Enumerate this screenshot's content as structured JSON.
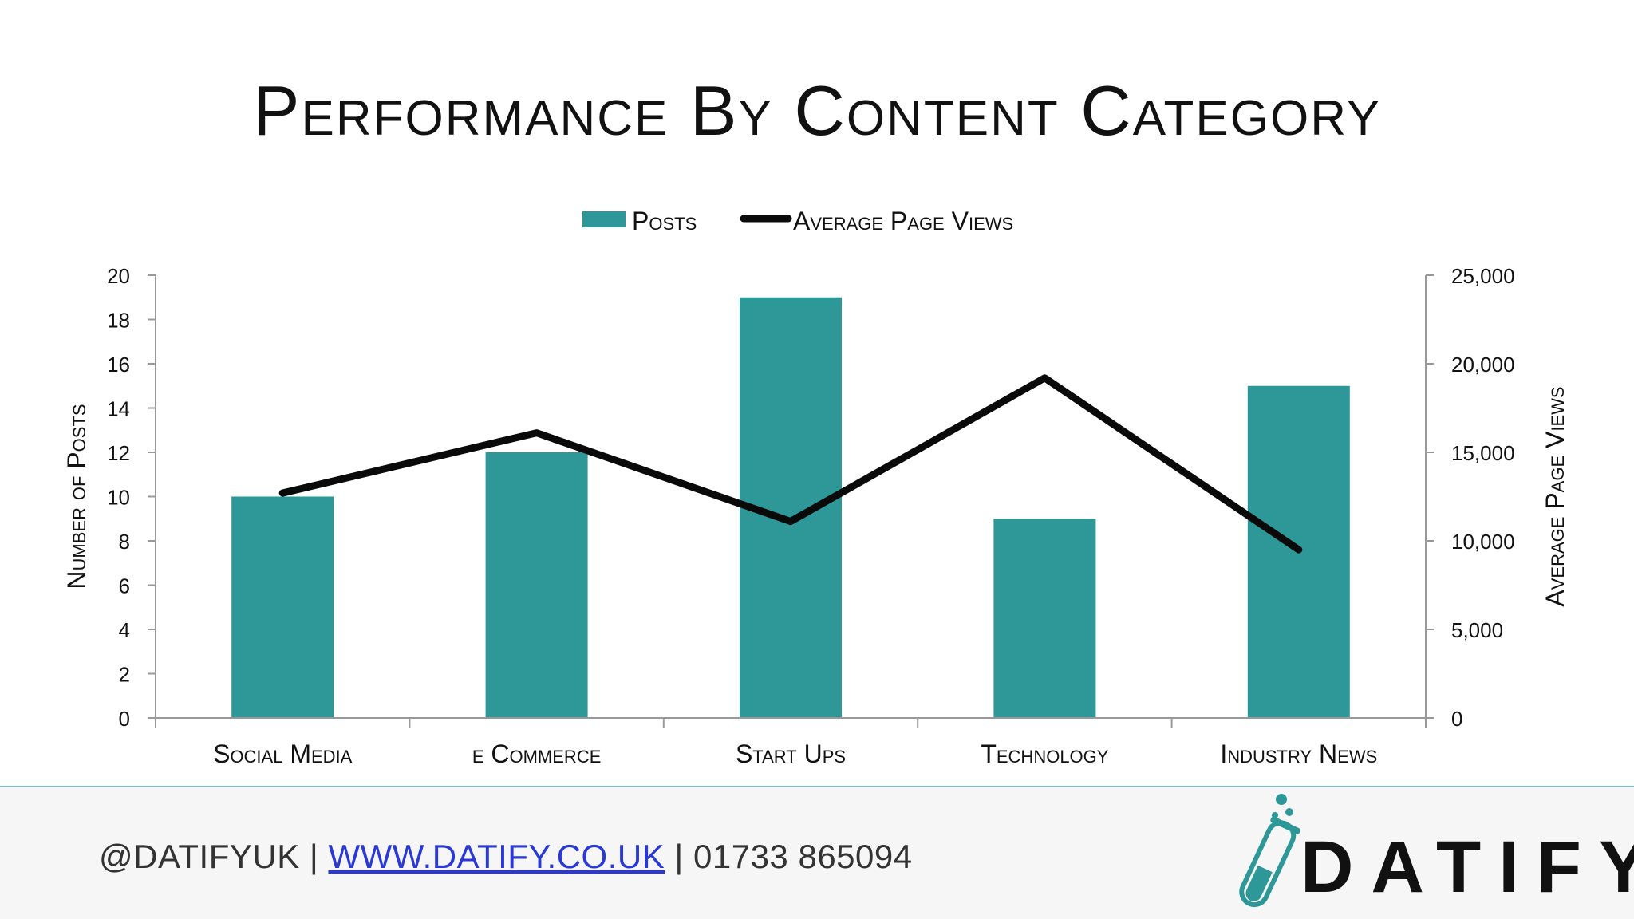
{
  "slide": {
    "title": "Performance By Content Category"
  },
  "chart_data": {
    "type": "bar",
    "categories": [
      "Social Media",
      "e Commerce",
      "Start Ups",
      "Technology",
      "Industry News"
    ],
    "series": [
      {
        "name": "Posts",
        "type": "bar",
        "axis": "left",
        "values": [
          10,
          12,
          19,
          9,
          15
        ]
      },
      {
        "name": "Average Page Views",
        "type": "line",
        "axis": "right",
        "values": [
          12700,
          16100,
          11100,
          19200,
          9500
        ]
      }
    ],
    "ylabel": "Number of Posts",
    "y2label": "Average Page Views",
    "ylim": [
      0,
      20
    ],
    "y2lim": [
      0,
      25000
    ],
    "yticks": [
      "0",
      "2",
      "4",
      "6",
      "8",
      "10",
      "12",
      "14",
      "16",
      "18",
      "20"
    ],
    "y2ticks": [
      "0",
      "5,000",
      "10,000",
      "15,000",
      "20,000",
      "25,000"
    ],
    "legend_position": "top-center",
    "colors": {
      "bar": "#2e9797",
      "line": "#0a0a0a",
      "axis": "#999999"
    }
  },
  "footer": {
    "handle": "@DATIFYUK",
    "separator": "|",
    "website": "WWW.DATIFY.CO.UK",
    "phone": "01733 865094",
    "brand": "DATIFY",
    "logo_icon": "test-tube-icon"
  }
}
